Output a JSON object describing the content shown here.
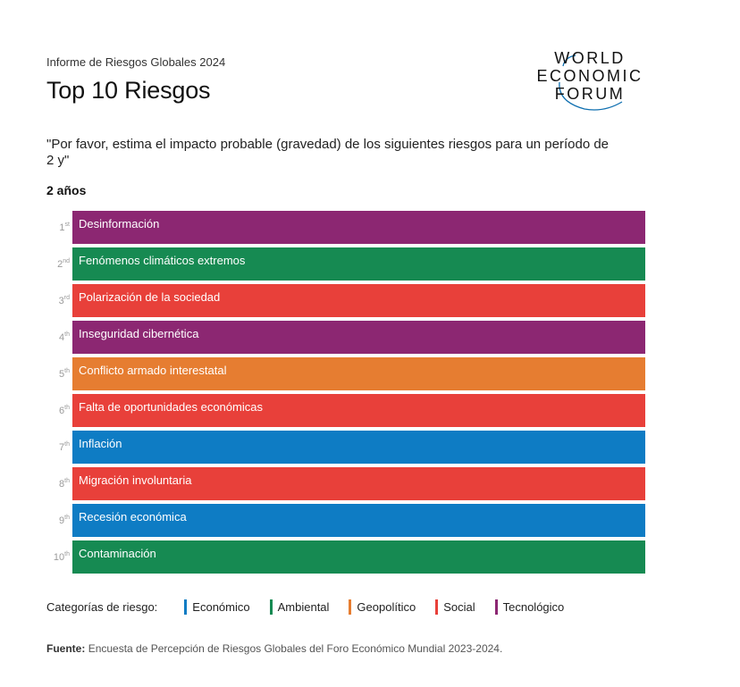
{
  "header": {
    "report_name": "Informe de Riesgos Globales 2024",
    "title": "Top 10 Riesgos",
    "logo": {
      "line1": "WORLD",
      "line2": "ECONOMIC",
      "line3": "FORUM"
    }
  },
  "question": "\"Por favor, estima el impacto probable (gravedad) de los siguientes riesgos para un período de 2 y\"",
  "horizon_label": "2 años",
  "risks": [
    {
      "rank": "1",
      "suffix": "st",
      "label": "Desinformación",
      "category": "Tecnológico",
      "color": "#8c2772"
    },
    {
      "rank": "2",
      "suffix": "nd",
      "label": "Fenómenos climáticos extremos",
      "category": "Ambiental",
      "color": "#168a52"
    },
    {
      "rank": "3",
      "suffix": "rd",
      "label": "Polarización de la sociedad",
      "category": "Social",
      "color": "#e8403a"
    },
    {
      "rank": "4",
      "suffix": "th",
      "label": "Inseguridad cibernética",
      "category": "Tecnológico",
      "color": "#8c2772"
    },
    {
      "rank": "5",
      "suffix": "th",
      "label": "Conflicto armado interestatal",
      "category": "Geopolítico",
      "color": "#e67d31"
    },
    {
      "rank": "6",
      "suffix": "th",
      "label": "Falta de oportunidades económicas",
      "category": "Social",
      "color": "#e8403a"
    },
    {
      "rank": "7",
      "suffix": "th",
      "label": "Inflación",
      "category": "Económico",
      "color": "#0e7cc4"
    },
    {
      "rank": "8",
      "suffix": "th",
      "label": "Migración involuntaria",
      "category": "Social",
      "color": "#e8403a"
    },
    {
      "rank": "9",
      "suffix": "th",
      "label": "Recesión económica",
      "category": "Económico",
      "color": "#0e7cc4"
    },
    {
      "rank": "10",
      "suffix": "th",
      "label": "Contaminación",
      "category": "Ambiental",
      "color": "#168a52"
    }
  ],
  "legend": {
    "title": "Categorías de riesgo:",
    "items": [
      {
        "label": "Económico",
        "color": "#0e7cc4"
      },
      {
        "label": "Ambiental",
        "color": "#168a52"
      },
      {
        "label": "Geopolítico",
        "color": "#e67d31"
      },
      {
        "label": "Social",
        "color": "#e8403a"
      },
      {
        "label": "Tecnológico",
        "color": "#8c2772"
      }
    ]
  },
  "source": {
    "label": "Fuente:",
    "text": "Encuesta de Percepción de Riesgos Globales del Foro Económico Mundial 2023-2024."
  }
}
